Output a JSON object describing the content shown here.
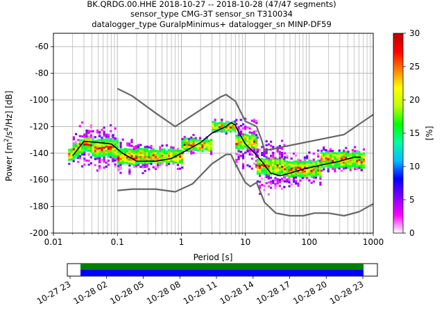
{
  "title_lines": [
    "BK.QRDG.00.HHE   2018-10-27 -- 2018-10-28  (47/47 segments)",
    "sensor_type CMG-3T sensor_sn T310034",
    "datalogger_type GuralpMinimus+ datalogger_sn MINP-DF59"
  ],
  "chart_data": {
    "type": "heatmap",
    "subtype": "probabilistic-power-spectral-density",
    "xlabel": "Period [s]",
    "xscale": "log",
    "xlim": [
      0.01,
      1000
    ],
    "ylabel": "Power [m2/s4/Hz] [dB]",
    "ylim": [
      -200,
      -50
    ],
    "grid": true,
    "x_ticks": [
      "0.01",
      "0.1",
      "1",
      "10",
      "100",
      "1000"
    ],
    "y_ticks": [
      "-60",
      "-80",
      "-100",
      "-120",
      "-140",
      "-160",
      "-180",
      "-200"
    ],
    "colorbar": {
      "label": "[%]",
      "range": [
        0,
        30
      ],
      "ticks": [
        "0",
        "5",
        "10",
        "15",
        "20",
        "25",
        "30"
      ],
      "colormap": [
        "#ffffff",
        "#ff00ff",
        "#8000ff",
        "#0000ff",
        "#00c0ff",
        "#00ffa0",
        "#00ff00",
        "#c0ff00",
        "#ffff00",
        "#ff8000",
        "#ff0000",
        "#c00000"
      ]
    },
    "series": [
      {
        "name": "",
        "role": "mode",
        "color": "#000000",
        "points": [
          [
            0.02,
            -142
          ],
          [
            0.025,
            -136
          ],
          [
            0.03,
            -131
          ],
          [
            0.05,
            -132
          ],
          [
            0.08,
            -133
          ],
          [
            0.12,
            -140
          ],
          [
            0.2,
            -146
          ],
          [
            0.4,
            -146
          ],
          [
            0.7,
            -144
          ],
          [
            1,
            -140
          ],
          [
            2,
            -132
          ],
          [
            3,
            -125
          ],
          [
            5,
            -120
          ],
          [
            6,
            -117
          ],
          [
            7,
            -119
          ],
          [
            8,
            -125
          ],
          [
            10,
            -133
          ],
          [
            14,
            -140
          ],
          [
            18,
            -146
          ],
          [
            25,
            -155
          ],
          [
            35,
            -157
          ],
          [
            50,
            -155
          ],
          [
            80,
            -152
          ],
          [
            150,
            -149
          ],
          [
            300,
            -146
          ],
          [
            500,
            -143
          ],
          [
            640,
            -143
          ]
        ]
      },
      {
        "name": "",
        "role": "noise-model-high",
        "color": "#666666",
        "points": [
          [
            0.1,
            -91.5
          ],
          [
            0.17,
            -97
          ],
          [
            0.4,
            -110
          ],
          [
            0.8,
            -120
          ],
          [
            4,
            -98
          ],
          [
            5,
            -96
          ],
          [
            7,
            -101
          ],
          [
            10,
            -116
          ],
          [
            15,
            -120
          ],
          [
            18,
            -130
          ],
          [
            20,
            -138
          ],
          [
            350,
            -126
          ],
          [
            1000,
            -111
          ]
        ]
      },
      {
        "name": "",
        "role": "noise-model-low",
        "color": "#666666",
        "points": [
          [
            0.1,
            -168
          ],
          [
            0.17,
            -167
          ],
          [
            0.4,
            -167
          ],
          [
            0.8,
            -169
          ],
          [
            1.5,
            -163
          ],
          [
            3,
            -148
          ],
          [
            5,
            -141
          ],
          [
            6,
            -141
          ],
          [
            7,
            -148
          ],
          [
            10,
            -162
          ],
          [
            12,
            -165
          ],
          [
            15,
            -162
          ],
          [
            20,
            -177
          ],
          [
            30,
            -185
          ],
          [
            50,
            -187
          ],
          [
            80,
            -187
          ],
          [
            120,
            -185
          ],
          [
            200,
            -185
          ],
          [
            350,
            -187
          ],
          [
            600,
            -184
          ],
          [
            1000,
            -178
          ]
        ]
      }
    ],
    "density_bands": [
      {
        "period_range": [
          0.017,
          0.02
        ],
        "center_db": -140,
        "core_halfwidth_db": 4,
        "spread_db": 10
      },
      {
        "period_range": [
          0.02,
          0.025
        ],
        "center_db": -138,
        "core_halfwidth_db": 5,
        "spread_db": 14
      },
      {
        "period_range": [
          0.025,
          0.04
        ],
        "center_db": -134,
        "core_halfwidth_db": 5,
        "spread_db": 20
      },
      {
        "period_range": [
          0.04,
          0.1
        ],
        "center_db": -136,
        "core_halfwidth_db": 6,
        "spread_db": 18
      },
      {
        "period_range": [
          0.1,
          0.3
        ],
        "center_db": -143,
        "core_halfwidth_db": 6,
        "spread_db": 14
      },
      {
        "period_range": [
          0.3,
          1
        ],
        "center_db": -143,
        "core_halfwidth_db": 5,
        "spread_db": 10
      },
      {
        "period_range": [
          1,
          3
        ],
        "center_db": -134,
        "core_halfwidth_db": 4,
        "spread_db": 8
      },
      {
        "period_range": [
          3,
          7
        ],
        "center_db": -120,
        "core_halfwidth_db": 3,
        "spread_db": 6
      },
      {
        "period_range": [
          7,
          15
        ],
        "center_db": -132,
        "core_halfwidth_db": 5,
        "spread_db": 22
      },
      {
        "period_range": [
          15,
          40
        ],
        "center_db": -150,
        "core_halfwidth_db": 6,
        "spread_db": 22
      },
      {
        "period_range": [
          40,
          150
        ],
        "center_db": -152,
        "core_halfwidth_db": 6,
        "spread_db": 14
      },
      {
        "period_range": [
          150,
          700
        ],
        "center_db": -145,
        "core_halfwidth_db": 6,
        "spread_db": 10
      }
    ]
  },
  "coverage": {
    "time_ticks": [
      "10-27 23",
      "10-28 02",
      "10-28 05",
      "10-28 08",
      "10-28 11",
      "10-28 14",
      "10-28 17",
      "10-28 20",
      "10-28 23"
    ],
    "bar_colors": [
      "#008000",
      "#0000ff"
    ]
  }
}
